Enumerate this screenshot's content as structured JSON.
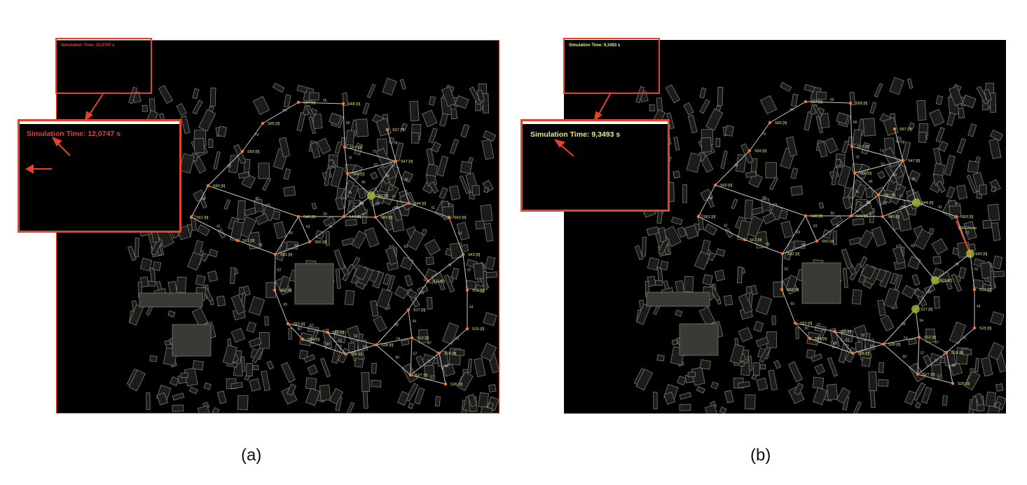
{
  "panel_a": {
    "caption": "(a)",
    "sim_time": "Simulation Time: 12,0747 s",
    "sim_color": "#e8412a"
  },
  "panel_b": {
    "caption": "(b)",
    "sim_time": "Simulation Time: 9,3493 s",
    "sim_color": "#e6ec8a",
    "extra_label": "S36G/Node"
  },
  "colors": {
    "highlight": "#e8412a",
    "node": "#f07a2a",
    "edge": "#c8c8c8",
    "label": "#e6ec8a",
    "building": "#7a7a72",
    "active_node": "#9bd03a"
  },
  "network": {
    "nodes": [
      {
        "id": "S64",
        "label": "S64 [0]"
      },
      {
        "id": "S58",
        "label": "S58 [0]"
      },
      {
        "id": "S65",
        "label": "S65 [0]"
      },
      {
        "id": "S57",
        "label": "S57 [0]"
      },
      {
        "id": "S59",
        "label": "S59 [0]"
      },
      {
        "id": "S67",
        "label": "S67 [0]"
      },
      {
        "id": "S47",
        "label": "S47 [0]"
      },
      {
        "id": "S66",
        "label": "S66 [0]"
      },
      {
        "id": "S60",
        "label": "S60 [0]"
      },
      {
        "id": "S42",
        "label": "S42 [0]"
      },
      {
        "id": "S44",
        "label": "S44 [0]"
      },
      {
        "id": "S61",
        "label": "S61 [0]"
      },
      {
        "id": "S48",
        "label": "S48 [0]"
      },
      {
        "id": "S46",
        "label": "S46 [0]"
      },
      {
        "id": "S49",
        "label": "S49 [0]"
      },
      {
        "id": "S63",
        "label": "S63 [0]"
      },
      {
        "id": "S62",
        "label": "S62 [0]"
      },
      {
        "id": "S50",
        "label": "S50 [0]"
      },
      {
        "id": "S51",
        "label": "S51 [0]"
      },
      {
        "id": "S43",
        "label": "S43 [0]"
      },
      {
        "id": "S11",
        "label": "S11 [0]"
      },
      {
        "id": "S13",
        "label": "S13 [0]"
      },
      {
        "id": "S52",
        "label": "S52 [0]"
      },
      {
        "id": "S17",
        "label": "S17 [0]"
      },
      {
        "id": "S53",
        "label": "S53 [0]"
      },
      {
        "id": "S15",
        "label": "S15 [0]"
      },
      {
        "id": "S56",
        "label": "S56 [0]"
      },
      {
        "id": "S54",
        "label": "S54 [0]"
      },
      {
        "id": "S28",
        "label": "S28 [0]"
      },
      {
        "id": "S12",
        "label": "S12 [0]"
      },
      {
        "id": "S55",
        "label": "S55 [0]"
      },
      {
        "id": "S16",
        "label": "S16 [0]"
      },
      {
        "id": "S27",
        "label": "S27 [0]"
      },
      {
        "id": "S26",
        "label": "S26 [0]"
      }
    ],
    "edge_labels": [
      "65",
      "66",
      "79",
      "62",
      "54",
      "66",
      "72",
      "46",
      "76",
      "77",
      "58",
      "48",
      "65",
      "57",
      "53",
      "59",
      "61",
      "60",
      "67",
      "50",
      "63",
      "69",
      "64",
      "61",
      "42",
      "55",
      "53",
      "65",
      "57",
      "60",
      "68",
      "61",
      "52",
      "59",
      "74",
      "39",
      "72",
      "78",
      "61",
      "62",
      "44",
      "51",
      "67",
      "57",
      "77",
      "57",
      "58",
      "60",
      "54",
      "63",
      "52"
    ]
  }
}
